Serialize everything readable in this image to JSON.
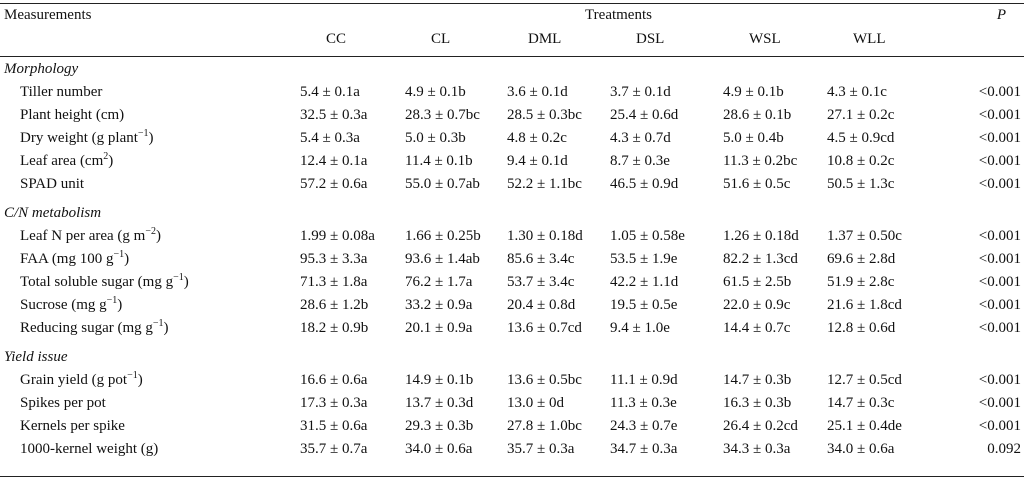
{
  "header": {
    "measurements": "Measurements",
    "treatments": "Treatments",
    "p": "P",
    "columns": [
      "CC",
      "CL",
      "DML",
      "DSL",
      "WSL",
      "WLL"
    ]
  },
  "sections": [
    {
      "title": "Morphology",
      "rows": [
        {
          "label": "Tiller number",
          "sup": "",
          "suffix": "",
          "values": [
            "5.4 ± 0.1a",
            "4.9 ± 0.1b",
            "3.6 ± 0.1d",
            "3.7 ± 0.1d",
            "4.9 ± 0.1b",
            "4.3 ± 0.1c"
          ],
          "p": "<0.001"
        },
        {
          "label": "Plant height (cm)",
          "sup": "",
          "suffix": "",
          "values": [
            "32.5 ± 0.3a",
            "28.3 ± 0.7bc",
            "28.5 ± 0.3bc",
            "25.4 ± 0.6d",
            "28.6 ± 0.1b",
            "27.1 ± 0.2c"
          ],
          "p": "<0.001"
        },
        {
          "label": "Dry weight (g plant",
          "sup": "−1",
          "suffix": ")",
          "values": [
            "5.4 ± 0.3a",
            "5.0 ± 0.3b",
            "4.8 ± 0.2c",
            "4.3 ± 0.7d",
            "5.0 ± 0.4b",
            "4.5 ± 0.9cd"
          ],
          "p": "<0.001"
        },
        {
          "label": "Leaf area (cm",
          "sup": "2",
          "suffix": ")",
          "values": [
            "12.4 ± 0.1a",
            "11.4 ± 0.1b",
            "9.4 ± 0.1d",
            "8.7 ± 0.3e",
            "11.3 ± 0.2bc",
            "10.8 ± 0.2c"
          ],
          "p": "<0.001"
        },
        {
          "label": "SPAD unit",
          "sup": "",
          "suffix": "",
          "values": [
            "57.2 ± 0.6a",
            "55.0 ± 0.7ab",
            "52.2 ± 1.1bc",
            "46.5 ± 0.9d",
            "51.6 ± 0.5c",
            "50.5 ± 1.3c"
          ],
          "p": "<0.001"
        }
      ]
    },
    {
      "title": "C/N metabolism",
      "rows": [
        {
          "label": "Leaf N per area (g m",
          "sup": "−2",
          "suffix": ")",
          "values": [
            "1.99 ± 0.08a",
            "1.66 ± 0.25b",
            "1.30 ± 0.18d",
            "1.05 ± 0.58e",
            "1.26 ± 0.18d",
            "1.37 ± 0.50c"
          ],
          "p": "<0.001"
        },
        {
          "label": "FAA (mg 100 g",
          "sup": "−1",
          "suffix": ")",
          "values": [
            "95.3 ± 3.3a",
            "93.6 ± 1.4ab",
            "85.6 ± 3.4c",
            "53.5 ± 1.9e",
            "82.2 ± 1.3cd",
            "69.6 ± 2.8d"
          ],
          "p": "<0.001"
        },
        {
          "label": "Total soluble sugar (mg g",
          "sup": "−1",
          "suffix": ")",
          "values": [
            "71.3 ± 1.8a",
            "76.2 ± 1.7a",
            "53.7 ± 3.4c",
            "42.2 ± 1.1d",
            "61.5 ± 2.5b",
            "51.9 ± 2.8c"
          ],
          "p": "<0.001"
        },
        {
          "label": "Sucrose (mg g",
          "sup": "−1",
          "suffix": ")",
          "values": [
            "28.6 ± 1.2b",
            "33.2 ± 0.9a",
            "20.4 ± 0.8d",
            "19.5 ± 0.5e",
            "22.0 ± 0.9c",
            "21.6 ± 1.8cd"
          ],
          "p": "<0.001"
        },
        {
          "label": "Reducing sugar (mg g",
          "sup": "−1",
          "suffix": ")",
          "values": [
            "18.2 ± 0.9b",
            "20.1 ± 0.9a",
            "13.6 ± 0.7cd",
            "9.4 ± 1.0e",
            "14.4 ± 0.7c",
            "12.8 ± 0.6d"
          ],
          "p": "<0.001"
        }
      ]
    },
    {
      "title": "Yield issue",
      "rows": [
        {
          "label": "Grain yield (g pot",
          "sup": "−1",
          "suffix": ")",
          "values": [
            "16.6 ± 0.6a",
            "14.9 ± 0.1b",
            "13.6 ± 0.5bc",
            "11.1 ± 0.9d",
            "14.7 ± 0.3b",
            "12.7 ± 0.5cd"
          ],
          "p": "<0.001"
        },
        {
          "label": "Spikes per pot",
          "sup": "",
          "suffix": "",
          "values": [
            "17.3 ± 0.3a",
            "13.7 ± 0.3d",
            "13.0 ± 0d",
            "11.3 ± 0.3e",
            "16.3 ± 0.3b",
            "14.7 ± 0.3c"
          ],
          "p": "<0.001"
        },
        {
          "label": "Kernels per spike",
          "sup": "",
          "suffix": "",
          "values": [
            "31.5 ± 0.6a",
            "29.3 ± 0.3b",
            "27.8 ± 1.0bc",
            "24.3 ± 0.7e",
            "26.4 ± 0.2cd",
            "25.1 ± 0.4de"
          ],
          "p": "<0.001"
        },
        {
          "label": "1000-kernel weight (g)",
          "sup": "",
          "suffix": "",
          "values": [
            "35.7 ± 0.7a",
            "34.0 ± 0.6a",
            "35.7 ± 0.3a",
            "34.7 ± 0.3a",
            "34.3 ± 0.3a",
            "34.0 ± 0.6a"
          ],
          "p": "0.092"
        }
      ]
    }
  ]
}
